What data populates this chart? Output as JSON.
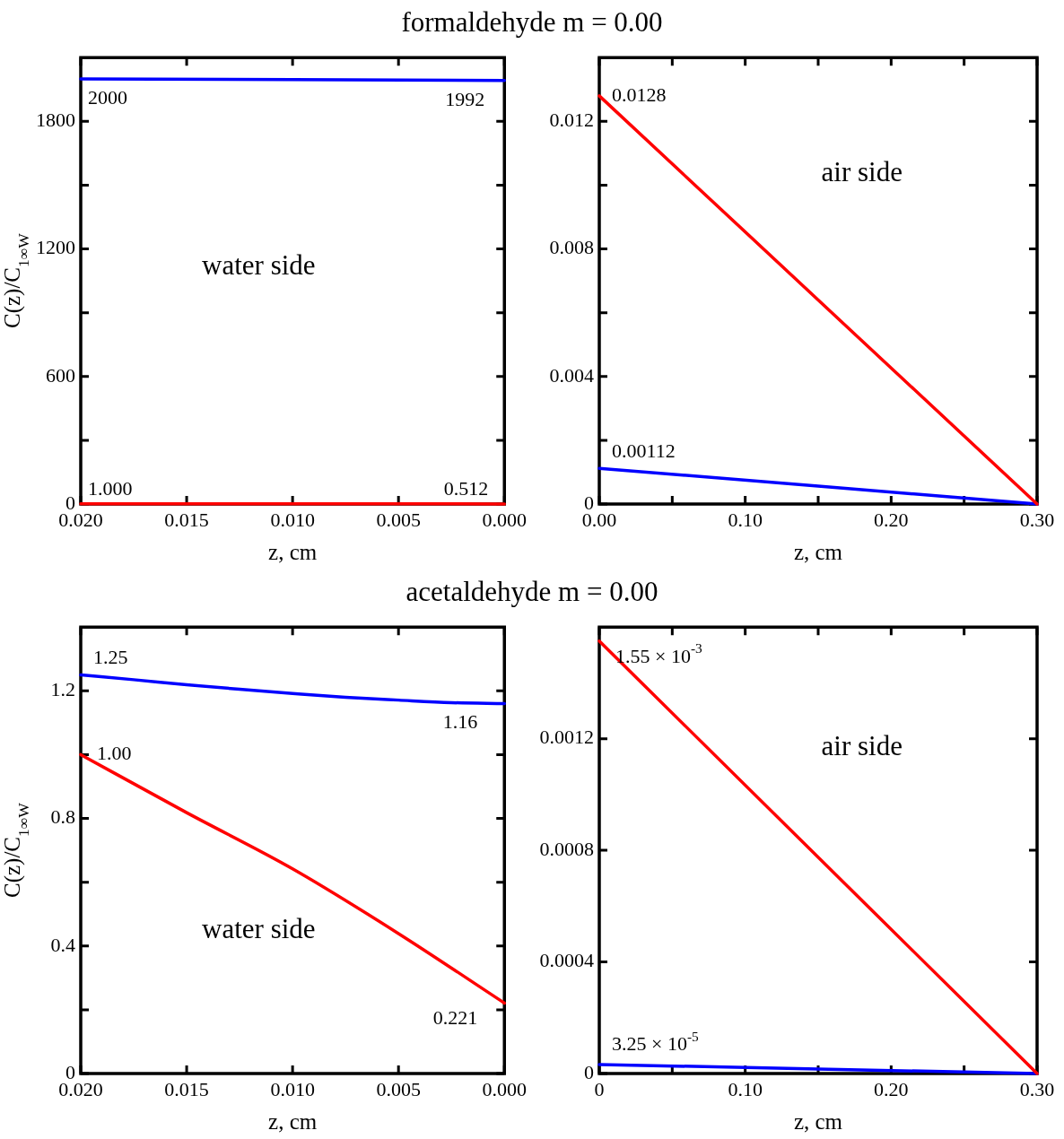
{
  "chart_data": [
    {
      "type": "line",
      "title": "formaldehyde m = 0.00",
      "xlabel": "z, cm",
      "ylabel": "C(z)/C$_{1∞W}$",
      "marker": "none",
      "xlim": [
        0.02,
        0
      ],
      "xticks": [
        {
          "value": 0.02,
          "label": "0.020"
        },
        {
          "value": 0.015,
          "label": "0.015"
        },
        {
          "value": 0.01,
          "label": "0.010"
        },
        {
          "value": 0.005,
          "label": "0.005"
        },
        {
          "value": 0,
          "label": "0.000"
        }
      ],
      "ylim": [
        0,
        2100
      ],
      "yticks": [
        0,
        {
          "value": 300,
          "label": null
        },
        600,
        {
          "value": 900,
          "label": null
        },
        1200,
        {
          "value": 1500,
          "label": null
        },
        1800
      ],
      "series": [
        {
          "color": "#0000ff",
          "x": [
            0.02,
            0
          ],
          "values": [
            2000,
            1992
          ],
          "value_labels": [
            "2000",
            "1992"
          ]
        },
        {
          "color": "#ff0000",
          "x": [
            0.02,
            0
          ],
          "values": [
            1.0,
            0.512
          ],
          "value_labels": [
            "1.000",
            "0.512"
          ]
        }
      ],
      "annotations": [
        "water side"
      ]
    },
    {
      "type": "line",
      "xlabel": "z, cm",
      "marker": "none",
      "xlim": [
        0,
        0.3
      ],
      "xticks": [
        {
          "value": 0,
          "label": "0.00"
        },
        {
          "value": 0.05,
          "label": null
        },
        {
          "value": 0.1,
          "label": "0.10"
        },
        {
          "value": 0.15,
          "label": null
        },
        {
          "value": 0.2,
          "label": "0.20"
        },
        {
          "value": 0.25,
          "label": null
        },
        {
          "value": 0.3,
          "label": "0.30"
        }
      ],
      "ylim": [
        0,
        0.014
      ],
      "yticks": [
        0,
        {
          "value": 0.002,
          "label": null
        },
        0.004,
        {
          "value": 0.006,
          "label": null
        },
        0.008,
        {
          "value": 0.01,
          "label": null
        },
        0.012
      ],
      "series": [
        {
          "color": "#ff0000",
          "x": [
            0,
            0.3
          ],
          "values": [
            0.0128,
            0
          ],
          "value_labels": [
            "0.0128",
            null
          ]
        },
        {
          "color": "#0000ff",
          "x": [
            0,
            0.3
          ],
          "values": [
            0.00112,
            0
          ],
          "value_labels": [
            "0.00112",
            null
          ]
        }
      ],
      "annotations": [
        "air side"
      ]
    },
    {
      "type": "line",
      "title": "acetaldehyde m = 0.00",
      "xlabel": "z, cm",
      "ylabel": "C(z)/C$_{1∞W}$",
      "marker": "none",
      "xlim": [
        0.02,
        0
      ],
      "xticks": [
        {
          "value": 0.02,
          "label": "0.020"
        },
        {
          "value": 0.015,
          "label": "0.015"
        },
        {
          "value": 0.01,
          "label": "0.010"
        },
        {
          "value": 0.005,
          "label": "0.005"
        },
        {
          "value": 0,
          "label": "0.000"
        }
      ],
      "ylim": [
        0,
        1.4
      ],
      "yticks": [
        0,
        {
          "value": 0.2,
          "label": null
        },
        0.4,
        {
          "value": 0.6,
          "label": null
        },
        0.8,
        {
          "value": 1.0,
          "label": null
        },
        1.2
      ],
      "series": [
        {
          "color": "#0000ff",
          "x": [
            0.02,
            0.0175,
            0.015,
            0.0125,
            0.01,
            0.0075,
            0.005,
            0.0025,
            0
          ],
          "values": [
            1.25,
            1.235,
            1.219,
            1.205,
            1.192,
            1.18,
            1.171,
            1.163,
            1.16
          ],
          "value_labels": [
            "1.25",
            null,
            null,
            null,
            null,
            null,
            null,
            null,
            "1.16"
          ]
        },
        {
          "color": "#ff0000",
          "x": [
            0.02,
            0.015,
            0.01,
            0.005,
            0
          ],
          "values": [
            1.0,
            0.818,
            0.642,
            0.439,
            0.221
          ],
          "value_labels": [
            "1.00",
            null,
            null,
            null,
            "0.221"
          ]
        }
      ],
      "annotations": [
        "water side"
      ]
    },
    {
      "type": "line",
      "xlabel": "z, cm",
      "marker": "none",
      "xlim": [
        0,
        0.3
      ],
      "xticks": [
        0,
        {
          "value": 0.05,
          "label": null
        },
        {
          "value": 0.1,
          "label": "0.10"
        },
        {
          "value": 0.15,
          "label": null
        },
        {
          "value": 0.2,
          "label": "0.20"
        },
        {
          "value": 0.25,
          "label": null
        },
        {
          "value": 0.3,
          "label": "0.30"
        }
      ],
      "ylim": [
        0,
        0.0016
      ],
      "yticks": [
        0,
        0.0004,
        0.0008,
        0.0012
      ],
      "series": [
        {
          "color": "#ff0000",
          "x": [
            0,
            0.3
          ],
          "values": [
            0.00155,
            0
          ],
          "value_labels": [
            "1.55 × 10$^{-3}$",
            null
          ]
        },
        {
          "color": "#0000ff",
          "x": [
            0,
            0.3
          ],
          "values": [
            3.25e-05,
            0
          ],
          "value_labels": [
            "3.25 × 10$^{-5}$",
            null
          ]
        }
      ],
      "annotations": [
        "air side"
      ]
    }
  ]
}
